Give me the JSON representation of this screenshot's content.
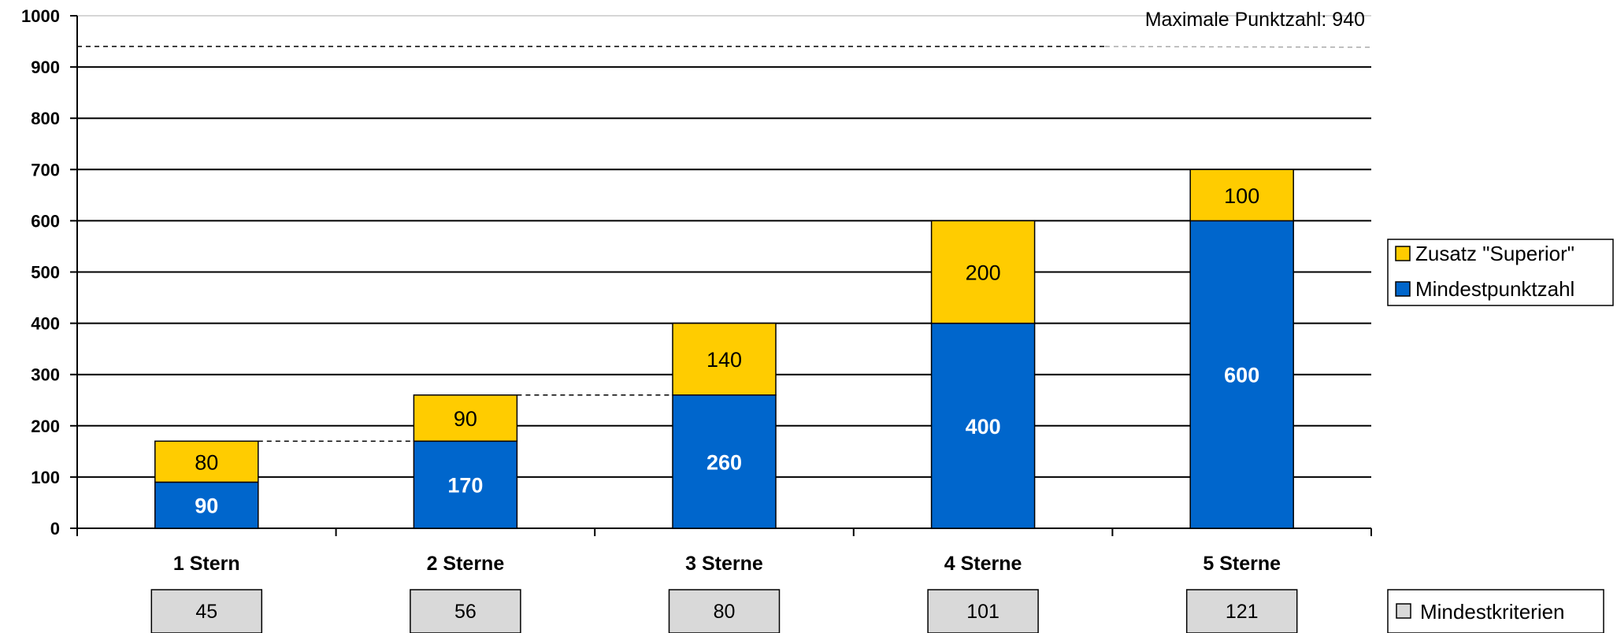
{
  "chart_data": {
    "type": "bar",
    "stacked": true,
    "categories": [
      "1 Stern",
      "2 Sterne",
      "3 Sterne",
      "4 Sterne",
      "5 Sterne"
    ],
    "series": [
      {
        "name": "Mindestpunktzahl",
        "values": [
          90,
          170,
          260,
          400,
          600
        ],
        "color": "#0066CC"
      },
      {
        "name": "Zusatz \"Superior\"",
        "values": [
          80,
          90,
          140,
          200,
          100
        ],
        "color": "#FFCC00"
      }
    ],
    "ylim": [
      0,
      1000
    ],
    "yticks": [
      0,
      100,
      200,
      300,
      400,
      500,
      600,
      700,
      800,
      900,
      1000
    ],
    "xlabel": "",
    "ylabel": "",
    "grid": true,
    "legend_position": "right",
    "reference_line": {
      "value": 940,
      "label": "Maximale Punktzahl: 940"
    },
    "mindestkriterien": {
      "label": "Mindestkriterien",
      "values": [
        45,
        56,
        80,
        101,
        121
      ],
      "color": "#D9D9D9"
    }
  }
}
